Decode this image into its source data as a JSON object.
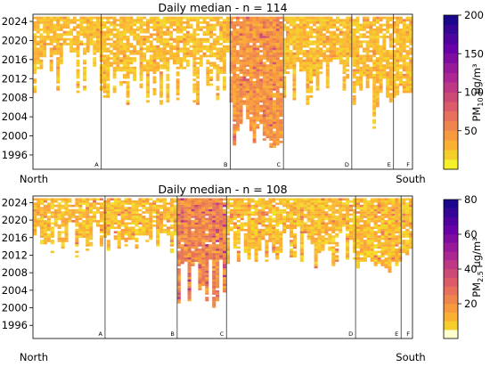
{
  "chart_data": [
    {
      "type": "heatmap",
      "title": "Daily median - n = 114",
      "n_sites": 114,
      "x_axis": {
        "left_label": "North",
        "right_label": "South"
      },
      "y_ticks": [
        "1996",
        "2000",
        "2004",
        "2008",
        "2012",
        "2016",
        "2020",
        "2024"
      ],
      "ylim": [
        1993,
        2025.5
      ],
      "sections": [
        {
          "label": "A",
          "x0": 0.0,
          "x1": 0.18,
          "start_min": 2013.5,
          "start_max": 2019.5,
          "long_start": 2008,
          "long_prob": 0.15,
          "density": 0.85
        },
        {
          "label": "B",
          "x0": 0.18,
          "x1": 0.52,
          "start_min": 2006,
          "start_max": 2018.5,
          "long_start": 2005.5,
          "long_prob": 0.12,
          "density": 0.8
        },
        {
          "label": "C",
          "x0": 0.52,
          "x1": 0.66,
          "start_min": 1998,
          "start_max": 2013,
          "long_start": 1997.5,
          "long_prob": 0.35,
          "density": 0.95
        },
        {
          "label": "D",
          "x0": 0.66,
          "x1": 0.84,
          "start_min": 2008,
          "start_max": 2016.5,
          "long_start": 2006.5,
          "long_prob": 0.15,
          "density": 0.9
        },
        {
          "label": "E",
          "x0": 0.84,
          "x1": 0.95,
          "start_min": 2005,
          "start_max": 2013,
          "long_start": 2001,
          "long_prob": 0.2,
          "density": 0.85
        },
        {
          "label": "F",
          "x0": 0.95,
          "x1": 1.0,
          "start_min": 2008,
          "start_max": 2012,
          "long_start": 2008,
          "long_prob": 0.3,
          "density": 0.9
        }
      ],
      "colorbar": {
        "label_main": "PM",
        "label_sub": "10",
        "label_unit": " µg/m³",
        "ticks": [
          "50",
          "100",
          "150",
          "200"
        ],
        "range": [
          0,
          200
        ],
        "low_color": "#f5f02a",
        "colormap": "plasma_r",
        "levels": [
          0,
          12.5,
          25,
          37.5,
          50,
          62.5,
          75,
          87.5,
          100,
          112.5,
          125,
          137.5,
          150,
          162.5,
          175,
          187.5,
          200
        ]
      },
      "value_ranges": {
        "default": [
          14,
          36
        ],
        "C": [
          30,
          62
        ]
      }
    },
    {
      "type": "heatmap",
      "title": "Daily median - n = 108",
      "n_sites": 108,
      "x_axis": {
        "left_label": "North",
        "right_label": "South"
      },
      "y_ticks": [
        "1996",
        "2000",
        "2004",
        "2008",
        "2012",
        "2016",
        "2020",
        "2024"
      ],
      "ylim": [
        1993,
        2025.5
      ],
      "sections": [
        {
          "label": "A",
          "x0": 0.0,
          "x1": 0.19,
          "start_min": 2013,
          "start_max": 2020,
          "long_start": 2011,
          "long_prob": 0.15,
          "density": 0.85
        },
        {
          "label": "B",
          "x0": 0.19,
          "x1": 0.38,
          "start_min": 2013,
          "start_max": 2019,
          "long_start": 2012,
          "long_prob": 0.1,
          "density": 0.85
        },
        {
          "label": "C",
          "x0": 0.38,
          "x1": 0.51,
          "start_min": 2000,
          "start_max": 2011.5,
          "long_start": 2000,
          "long_prob": 0.3,
          "density": 0.95
        },
        {
          "label": "D",
          "x0": 0.51,
          "x1": 0.85,
          "start_min": 2010,
          "start_max": 2019,
          "long_start": 2009,
          "long_prob": 0.12,
          "density": 0.88
        },
        {
          "label": "E",
          "x0": 0.85,
          "x1": 0.97,
          "start_min": 2009,
          "start_max": 2012,
          "long_start": 2008,
          "long_prob": 0.2,
          "density": 0.9
        },
        {
          "label": "F",
          "x0": 0.97,
          "x1": 1.0,
          "start_min": 2012,
          "start_max": 2014,
          "long_start": 2012,
          "long_prob": 0.3,
          "density": 0.9
        }
      ],
      "colorbar": {
        "label_main": "PM",
        "label_sub": "2.5",
        "label_unit": " µg/m³",
        "ticks": [
          "20",
          "40",
          "60",
          "80"
        ],
        "range": [
          0,
          80
        ],
        "low_color": "#ffffce",
        "colormap": "plasma_r",
        "levels": [
          0,
          5,
          10,
          15,
          20,
          25,
          30,
          35,
          40,
          45,
          50,
          55,
          60,
          65,
          70,
          75,
          80
        ]
      },
      "value_ranges": {
        "default": [
          4,
          16
        ],
        "C": [
          12,
          30
        ]
      }
    }
  ]
}
